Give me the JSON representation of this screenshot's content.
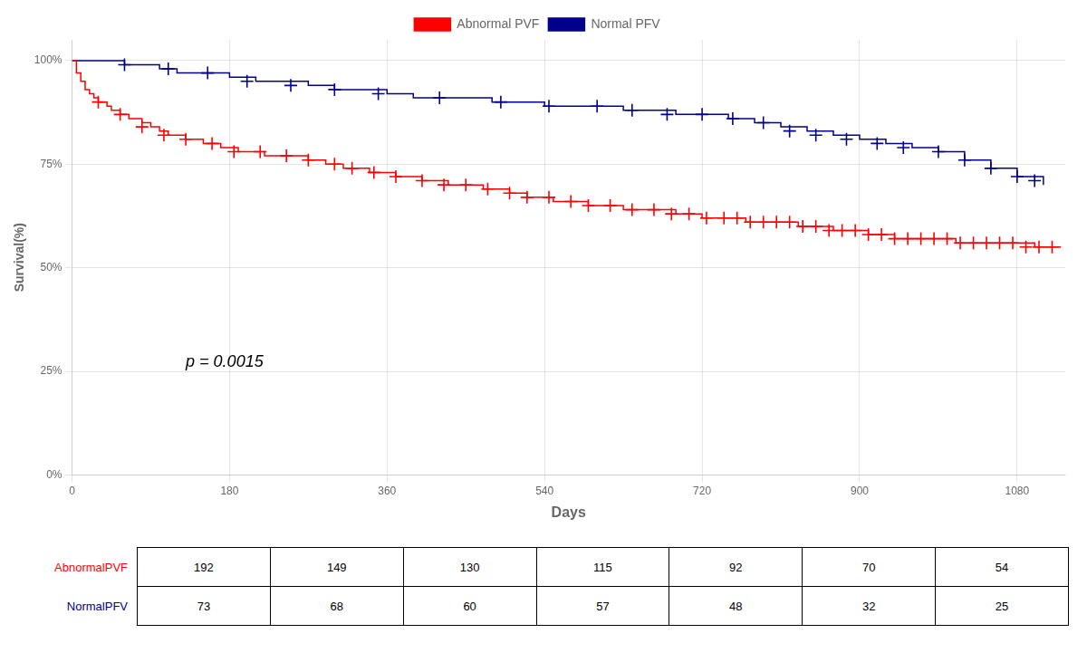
{
  "chart_data": {
    "type": "step",
    "title": "",
    "xlabel": "Days",
    "ylabel": "Survival(%)",
    "xlim": [
      0,
      1135
    ],
    "ylim": [
      0,
      1.05
    ],
    "xticks": [
      0,
      180,
      360,
      540,
      720,
      900,
      1080
    ],
    "yticks": [
      {
        "value": 0,
        "label": "0%"
      },
      {
        "value": 0.25,
        "label": "25%"
      },
      {
        "value": 0.5,
        "label": "50%"
      },
      {
        "value": 0.75,
        "label": "75%"
      },
      {
        "value": 1.0,
        "label": "100%"
      }
    ],
    "grid": true,
    "legend": "top",
    "series": [
      {
        "name": "Abnormal PVF",
        "color": "#FF0000",
        "marker": "+",
        "x": [
          0,
          5,
          10,
          15,
          20,
          25,
          30,
          35,
          40,
          45,
          50,
          55,
          60,
          65,
          70,
          80,
          90,
          100,
          110,
          120,
          130,
          140,
          150,
          160,
          170,
          180,
          190,
          200,
          210,
          220,
          230,
          240,
          250,
          260,
          270,
          280,
          290,
          300,
          310,
          320,
          330,
          340,
          350,
          360,
          370,
          380,
          390,
          400,
          410,
          420,
          430,
          440,
          450,
          460,
          470,
          480,
          490,
          500,
          510,
          520,
          530,
          540,
          550,
          560,
          570,
          580,
          590,
          600,
          610,
          620,
          630,
          640,
          650,
          660,
          670,
          680,
          690,
          700,
          710,
          720,
          730,
          740,
          750,
          760,
          770,
          780,
          790,
          800,
          810,
          820,
          830,
          840,
          850,
          860,
          870,
          880,
          890,
          900,
          910,
          920,
          930,
          940,
          950,
          960,
          970,
          980,
          990,
          1000,
          1010,
          1020,
          1030,
          1040,
          1050,
          1060,
          1070,
          1080,
          1090,
          1100,
          1110,
          1120,
          1130
        ],
        "values": [
          1.0,
          0.97,
          0.95,
          0.93,
          0.92,
          0.91,
          0.9,
          0.9,
          0.89,
          0.88,
          0.88,
          0.87,
          0.87,
          0.86,
          0.86,
          0.85,
          0.84,
          0.83,
          0.82,
          0.82,
          0.81,
          0.81,
          0.8,
          0.8,
          0.79,
          0.79,
          0.78,
          0.78,
          0.78,
          0.77,
          0.77,
          0.77,
          0.77,
          0.77,
          0.76,
          0.76,
          0.75,
          0.75,
          0.74,
          0.74,
          0.74,
          0.73,
          0.73,
          0.73,
          0.72,
          0.72,
          0.72,
          0.71,
          0.71,
          0.71,
          0.7,
          0.7,
          0.7,
          0.7,
          0.69,
          0.69,
          0.69,
          0.68,
          0.68,
          0.67,
          0.67,
          0.67,
          0.66,
          0.66,
          0.66,
          0.66,
          0.65,
          0.65,
          0.65,
          0.65,
          0.64,
          0.64,
          0.64,
          0.64,
          0.64,
          0.64,
          0.63,
          0.63,
          0.63,
          0.62,
          0.62,
          0.62,
          0.62,
          0.62,
          0.61,
          0.61,
          0.61,
          0.61,
          0.61,
          0.61,
          0.6,
          0.6,
          0.6,
          0.6,
          0.59,
          0.59,
          0.59,
          0.59,
          0.58,
          0.58,
          0.58,
          0.57,
          0.57,
          0.57,
          0.57,
          0.57,
          0.57,
          0.57,
          0.56,
          0.56,
          0.56,
          0.56,
          0.56,
          0.56,
          0.56,
          0.56,
          0.56,
          0.55,
          0.55,
          0.55,
          0.55
        ],
        "censor_x": [
          30,
          55,
          80,
          105,
          130,
          160,
          185,
          215,
          245,
          270,
          300,
          320,
          345,
          370,
          400,
          425,
          450,
          475,
          500,
          520,
          545,
          570,
          590,
          615,
          640,
          665,
          685,
          705,
          725,
          745,
          760,
          775,
          790,
          805,
          820,
          835,
          850,
          865,
          880,
          895,
          910,
          925,
          940,
          955,
          970,
          985,
          1000,
          1015,
          1030,
          1045,
          1060,
          1075,
          1090,
          1105,
          1120
        ],
        "censor_values": [
          0.9,
          0.87,
          0.84,
          0.82,
          0.81,
          0.8,
          0.78,
          0.78,
          0.77,
          0.76,
          0.75,
          0.74,
          0.73,
          0.72,
          0.71,
          0.7,
          0.7,
          0.69,
          0.68,
          0.67,
          0.67,
          0.66,
          0.65,
          0.65,
          0.64,
          0.64,
          0.63,
          0.63,
          0.62,
          0.62,
          0.62,
          0.61,
          0.61,
          0.61,
          0.61,
          0.6,
          0.6,
          0.59,
          0.59,
          0.59,
          0.58,
          0.58,
          0.57,
          0.57,
          0.57,
          0.57,
          0.57,
          0.56,
          0.56,
          0.56,
          0.56,
          0.56,
          0.55,
          0.55,
          0.55
        ]
      },
      {
        "name": "Normal PFV",
        "color": "#00008B",
        "marker": "+",
        "x": [
          0,
          30,
          60,
          90,
          100,
          110,
          120,
          150,
          180,
          210,
          240,
          270,
          300,
          330,
          360,
          390,
          420,
          450,
          480,
          510,
          540,
          570,
          600,
          630,
          660,
          690,
          720,
          750,
          780,
          810,
          840,
          870,
          900,
          930,
          960,
          990,
          1020,
          1050,
          1080,
          1110
        ],
        "values": [
          1.0,
          1.0,
          0.99,
          0.99,
          0.98,
          0.98,
          0.97,
          0.97,
          0.96,
          0.95,
          0.95,
          0.94,
          0.93,
          0.93,
          0.92,
          0.91,
          0.91,
          0.91,
          0.9,
          0.9,
          0.89,
          0.89,
          0.89,
          0.88,
          0.88,
          0.87,
          0.87,
          0.86,
          0.85,
          0.84,
          0.83,
          0.82,
          0.81,
          0.8,
          0.79,
          0.78,
          0.76,
          0.74,
          0.72,
          0.7
        ],
        "censor_x": [
          60,
          110,
          155,
          200,
          250,
          300,
          350,
          420,
          490,
          545,
          600,
          640,
          680,
          720,
          755,
          790,
          820,
          850,
          885,
          920,
          950,
          990,
          1020,
          1050,
          1080,
          1100
        ],
        "censor_values": [
          0.99,
          0.98,
          0.97,
          0.95,
          0.94,
          0.93,
          0.92,
          0.91,
          0.9,
          0.89,
          0.89,
          0.88,
          0.87,
          0.87,
          0.86,
          0.85,
          0.83,
          0.82,
          0.81,
          0.8,
          0.79,
          0.78,
          0.76,
          0.74,
          0.72,
          0.71
        ]
      }
    ],
    "annotations": [
      {
        "text": "p = 0.0015",
        "x": 130,
        "y": 0.26
      }
    ],
    "risk_table": {
      "rows": [
        {
          "name": "AbnormalPVF",
          "color": "#FF0000",
          "values": [
            192,
            149,
            130,
            115,
            92,
            70,
            54
          ]
        },
        {
          "name": "NormalPFV",
          "color": "#00008B",
          "values": [
            73,
            68,
            60,
            57,
            48,
            32,
            25
          ]
        }
      ]
    }
  }
}
